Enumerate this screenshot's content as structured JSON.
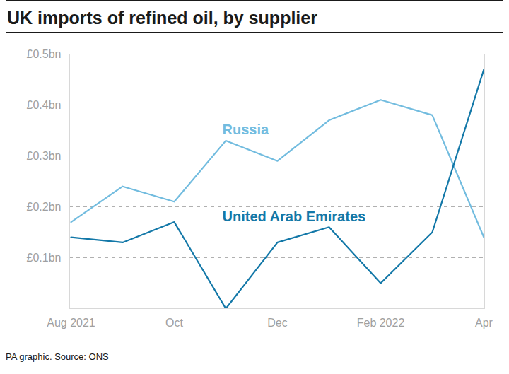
{
  "chart_data": {
    "type": "line",
    "title": "UK imports of refined oil, by supplier",
    "caption": "PA graphic. Source: ONS",
    "categories": [
      "Aug 2021",
      null,
      "Oct",
      null,
      "Dec",
      null,
      "Feb 2022",
      null,
      "Apr"
    ],
    "series": [
      {
        "name": "Russia",
        "color": "#72bcdf",
        "values": [
          0.17,
          0.24,
          0.21,
          0.33,
          0.29,
          0.37,
          0.41,
          0.38,
          0.14
        ]
      },
      {
        "name": "United Arab Emirates",
        "color": "#1378a8",
        "values": [
          0.14,
          0.13,
          0.17,
          0.0,
          0.13,
          0.16,
          0.05,
          0.15,
          0.47
        ]
      }
    ],
    "ylim": [
      0,
      0.5
    ],
    "yticks": [
      {
        "value": 0.1,
        "label": "£0.1bn"
      },
      {
        "value": 0.2,
        "label": "£0.2bn"
      },
      {
        "value": 0.3,
        "label": "£0.3bn"
      },
      {
        "value": 0.4,
        "label": "£0.4bn"
      },
      {
        "value": 0.5,
        "label": "£0.5bn"
      }
    ],
    "grid": true
  }
}
